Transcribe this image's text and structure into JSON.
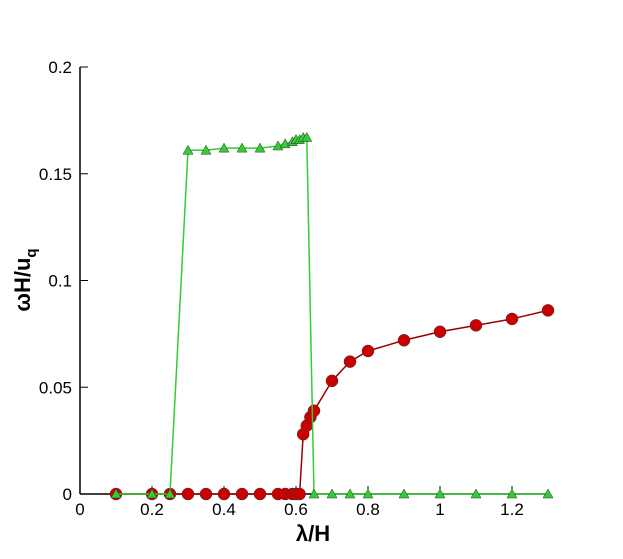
{
  "chart_data": {
    "type": "line",
    "xlabel": "λ/H",
    "ylabel": "ωH/u",
    "ylabel_subscript": "q",
    "xlim": [
      0,
      1.3
    ],
    "ylim": [
      0,
      0.2
    ],
    "xticks": [
      0,
      0.2,
      0.4,
      0.6,
      0.8,
      1,
      1.2
    ],
    "yticks": [
      0,
      0.05,
      0.1,
      0.15,
      0.2
    ],
    "series": [
      {
        "marker": "triangle",
        "color": "#33cc33",
        "x": [
          0.1,
          0.2,
          0.25,
          0.3,
          0.35,
          0.4,
          0.45,
          0.5,
          0.55,
          0.57,
          0.59,
          0.6,
          0.61,
          0.62,
          0.63,
          0.65,
          0.7,
          0.75,
          0.8,
          0.9,
          1.0,
          1.1,
          1.2,
          1.3
        ],
        "values": [
          0,
          0,
          0,
          0.161,
          0.161,
          0.162,
          0.162,
          0.162,
          0.163,
          0.164,
          0.165,
          0.166,
          0.166,
          0.167,
          0.167,
          0,
          0,
          0,
          0,
          0,
          0,
          0,
          0,
          0
        ]
      },
      {
        "marker": "circle",
        "color": "#cc0000",
        "line_color": "#990000",
        "x": [
          0.1,
          0.2,
          0.25,
          0.3,
          0.35,
          0.4,
          0.45,
          0.5,
          0.55,
          0.57,
          0.59,
          0.6,
          0.61,
          0.62,
          0.63,
          0.64,
          0.65,
          0.7,
          0.75,
          0.8,
          0.9,
          1.0,
          1.1,
          1.2,
          1.3
        ],
        "values": [
          0,
          0,
          0,
          0,
          0,
          0,
          0,
          0,
          0,
          0,
          0,
          0,
          0,
          0.028,
          0.032,
          0.036,
          0.039,
          0.053,
          0.062,
          0.067,
          0.072,
          0.076,
          0.079,
          0.082,
          0.086
        ]
      }
    ]
  }
}
